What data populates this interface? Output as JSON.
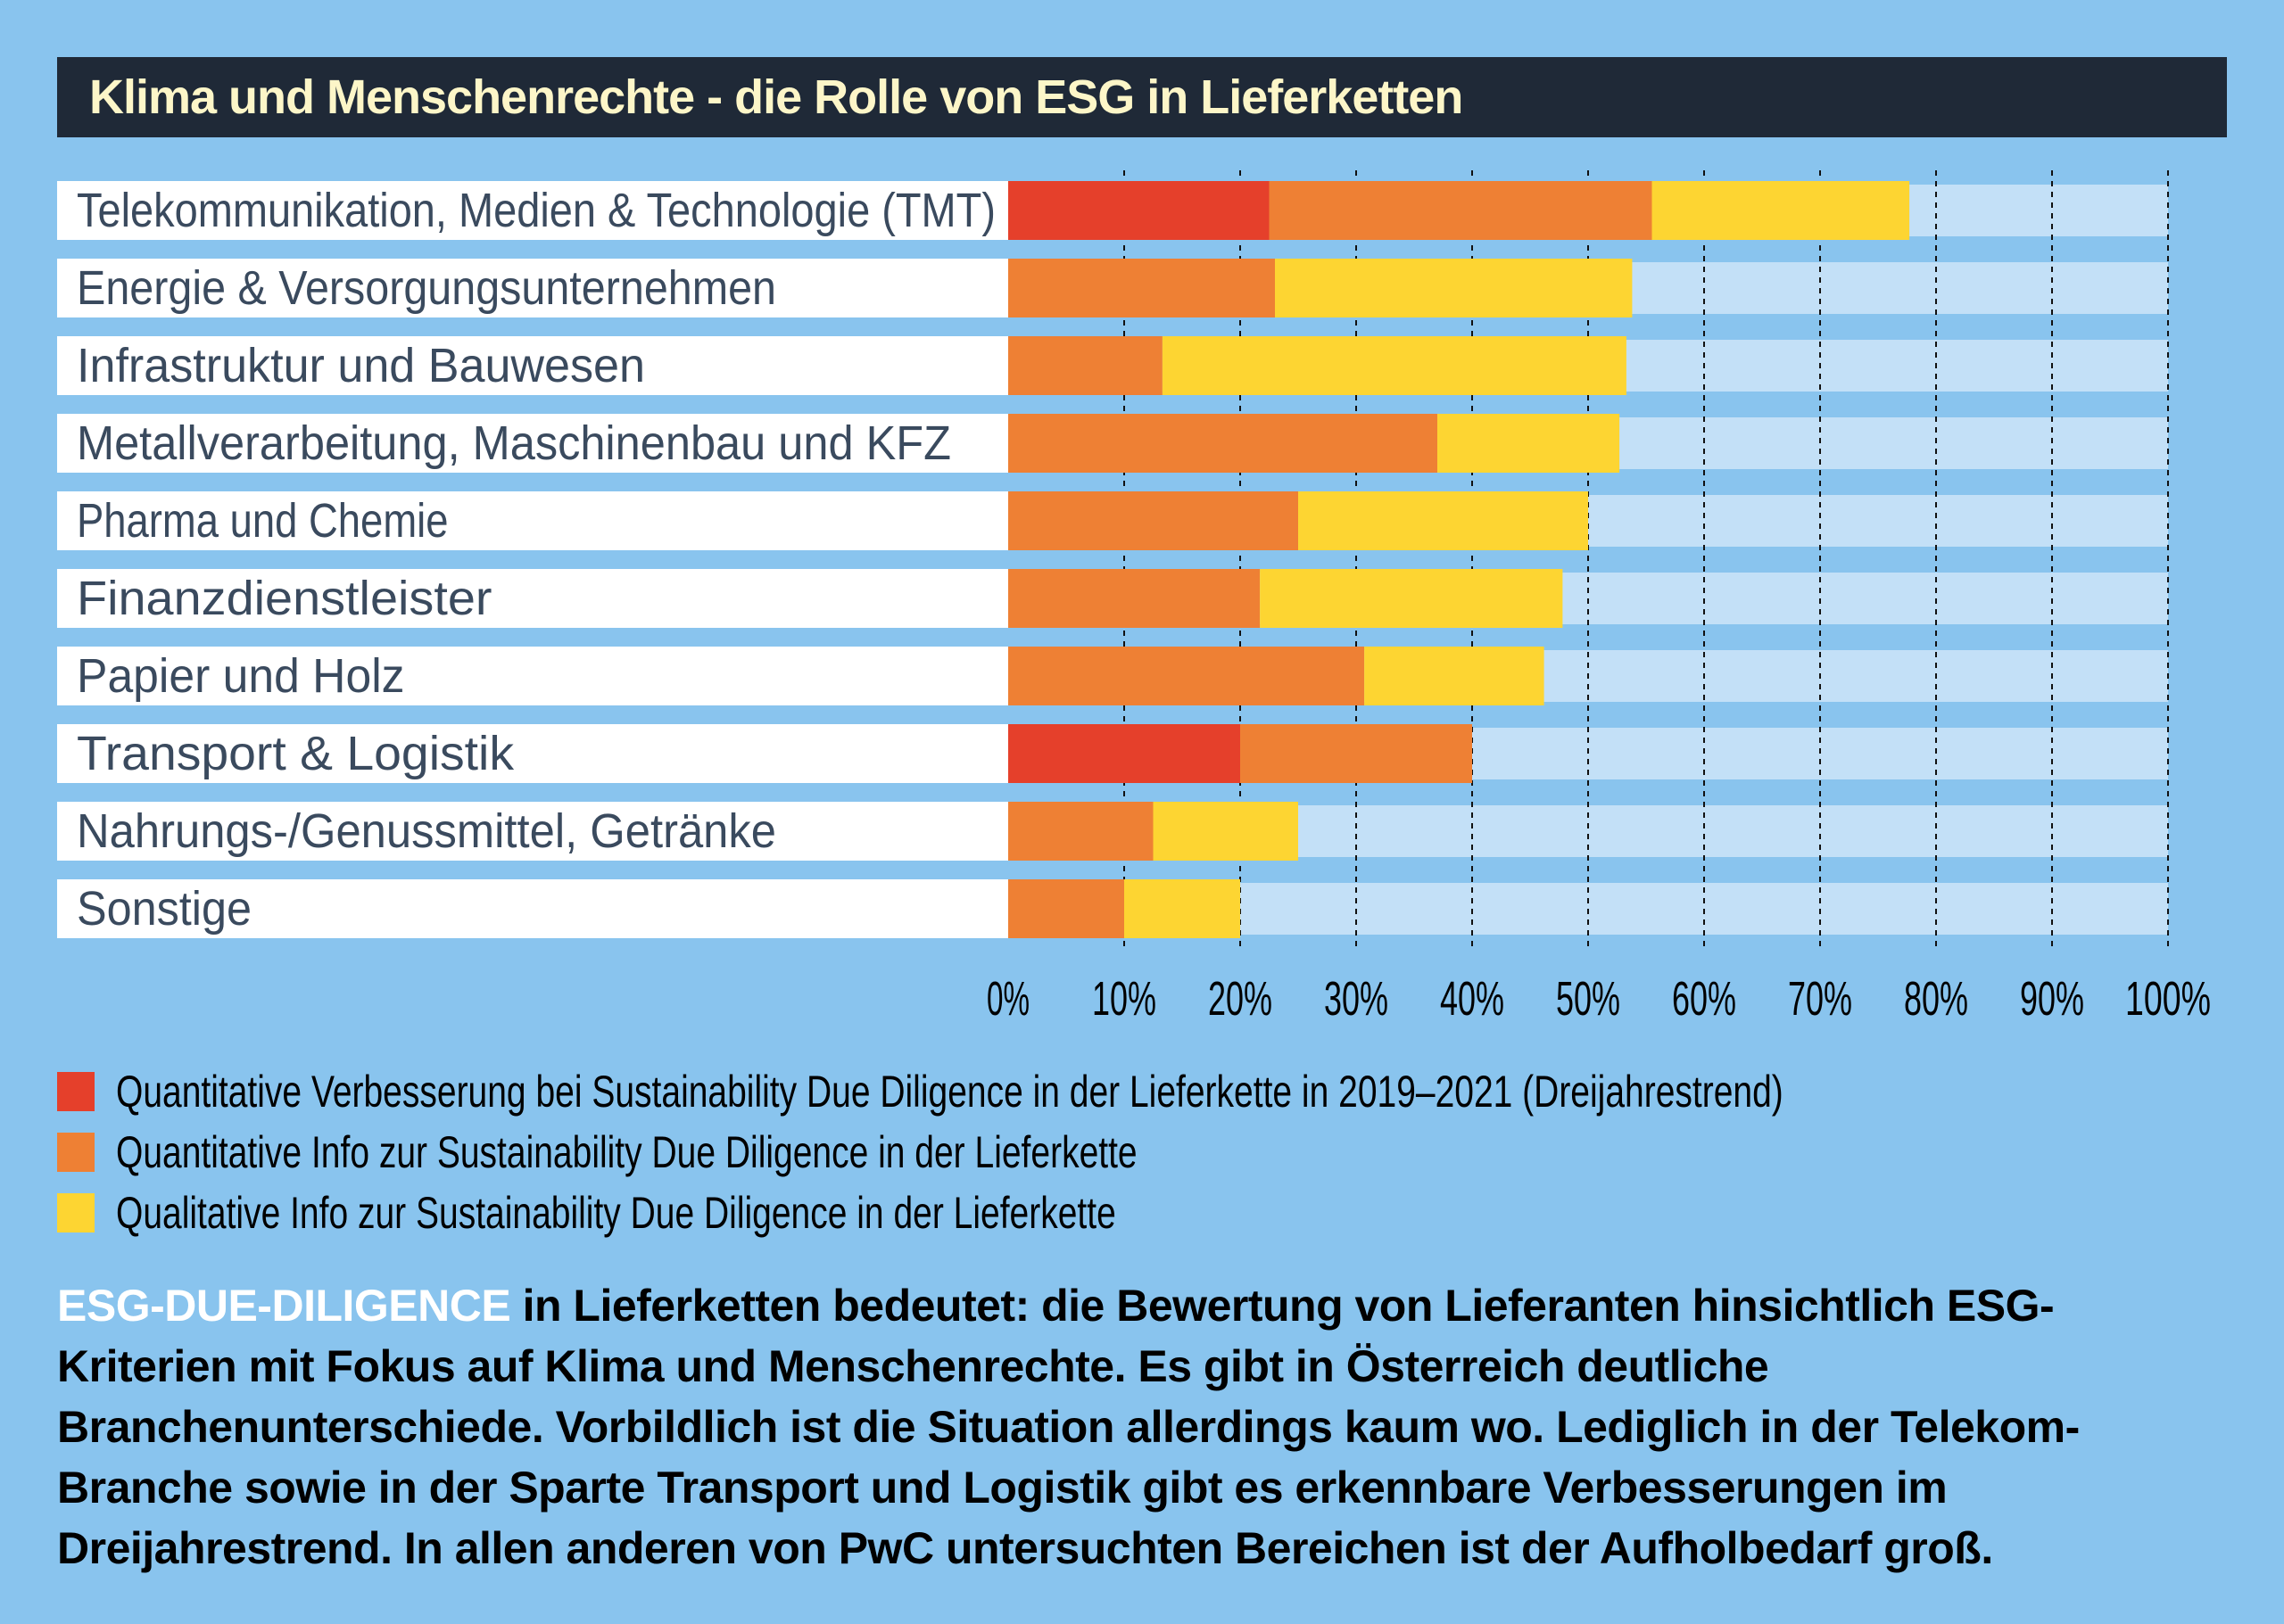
{
  "title": "Klima und Menschenrechte - die Rolle von ESG in Lieferketten",
  "colors": {
    "background": "#89c4ee",
    "title_bg": "#1f2937",
    "title_text": "#fdf6c8",
    "track": "#c3e0f7",
    "label_text": "#3a4a5e",
    "red": "#e5402b",
    "orange": "#ee8034",
    "yellow": "#fdd532"
  },
  "chart_data": {
    "type": "bar",
    "orientation": "horizontal",
    "stacked": true,
    "title": "Klima und Menschenrechte - die Rolle von ESG in Lieferketten",
    "xlabel": "",
    "ylabel": "",
    "xlim": [
      0,
      100
    ],
    "x_ticks": [
      "0%",
      "10%",
      "20%",
      "30%",
      "40%",
      "50%",
      "60%",
      "70%",
      "80%",
      "90%",
      "100%"
    ],
    "grid": "vertical dashed",
    "legend_position": "bottom-left",
    "categories": [
      "Telekommunikation, Medien & Technologie (TMT)",
      "Energie & Versorgungsunternehmen",
      "Infrastruktur und Bauwesen",
      "Metallverarbeitung, Maschinenbau und KFZ",
      "Pharma und Chemie",
      "Finanzdienstleister",
      "Papier und Holz",
      "Transport & Logistik",
      "Nahrungs-/Genussmittel, Getränke",
      "Sonstige"
    ],
    "series": [
      {
        "name": "Quantitative Verbesserung bei Sustainability Due Diligence in der Lieferkette in 2019-2021 (Dreijahrestrend)",
        "color": "#e5402b",
        "values": [
          22.5,
          0,
          0,
          0,
          0,
          0,
          0,
          20,
          0,
          0
        ]
      },
      {
        "name": "Quantitative Info zur Sustainability Due Diligence in der Lieferkette",
        "color": "#ee8034",
        "values": [
          33,
          23,
          13.3,
          37,
          25,
          21.7,
          30.7,
          20,
          12.5,
          10
        ]
      },
      {
        "name": "Qualitative Info zur Sustainability Due Diligence in der Lieferkette",
        "color": "#fdd532",
        "values": [
          22.2,
          30.8,
          40,
          15.7,
          25,
          26.1,
          15.5,
          0,
          12.5,
          10
        ]
      }
    ]
  },
  "legend": [
    {
      "label": "Quantitative Verbesserung bei Sustainability Due Diligence in der Lieferkette in 2019–2021 (Dreijahrestrend)",
      "color": "#e5402b"
    },
    {
      "label": "Quantitative Info zur Sustainability Due Diligence in der Lieferkette",
      "color": "#ee8034"
    },
    {
      "label": "Qualitative Info zur Sustainability Due Diligence in der Lieferkette",
      "color": "#fdd532"
    }
  ],
  "paragraph": {
    "highlight": "ESG-DUE-DILIGENCE",
    "text": " in Lieferketten bedeutet: die Bewertung von Lieferanten hinsichtlich ESG-Kriterien mit Fokus auf Klima und Menschenrechte. Es gibt in Österreich deutliche Branchenunterschiede. Vorbildlich ist die Situation allerdings kaum wo. Lediglich in der Telekom-Branche sowie in der Sparte Transport und Logistik gibt es erkennbare Verbesserungen im Dreijahrestrend. In allen anderen von PwC untersuchten Bereichen ist der Aufholbedarf groß."
  }
}
